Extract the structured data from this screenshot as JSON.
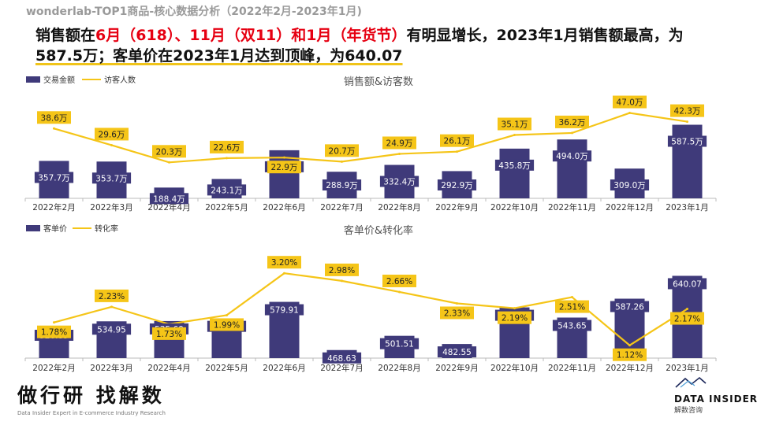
{
  "page": {
    "subtitle": "wonderlab-TOP1商品-核心数据分析（2022年2月-2023年1月)",
    "headline": {
      "p1": "销售额在",
      "p2": "6月（618）、11月（双11）和1月（年货节）",
      "p3": "有明显增长，2023年1月销售额最高，为",
      "p4": "587.5万；客单价在2023年1月达到顶峰，为640.07"
    }
  },
  "colors": {
    "bar": "#3f3a7a",
    "line": "#f5c518",
    "label_fill": "#f5c518",
    "axis": "#bbbbbb"
  },
  "chart_data": [
    {
      "type": "bar+line",
      "title": "销售额&访客数",
      "categories": [
        "2022年2月",
        "2022年3月",
        "2022年4月",
        "2022年5月",
        "2022年6月",
        "2022年7月",
        "2022年8月",
        "2022年9月",
        "2022年10月",
        "2022年11月",
        "2022年12月",
        "2023年1月"
      ],
      "series": [
        {
          "name": "交易金额",
          "type": "bar",
          "unit": "万",
          "values": [
            357.7,
            353.7,
            188.4,
            243.1,
            425.6,
            288.9,
            332.4,
            292.9,
            435.8,
            494.0,
            309.0,
            587.5
          ],
          "labels": [
            "357.7万",
            "353.7万",
            "188.4万",
            "243.1万",
            "425.6万",
            "288.9万",
            "332.4万",
            "292.9万",
            "435.8万",
            "494.0万",
            "309.0万",
            "587.5万"
          ]
        },
        {
          "name": "访客人数",
          "type": "line",
          "unit": "万",
          "values": [
            38.6,
            29.6,
            20.3,
            22.6,
            22.9,
            20.7,
            24.9,
            26.1,
            35.1,
            36.2,
            47.0,
            42.3
          ],
          "labels": [
            "38.6万",
            "29.6万",
            "20.3万",
            "22.6万",
            "22.9万",
            "20.7万",
            "24.9万",
            "26.1万",
            "35.1万",
            "36.2万",
            "47.0万",
            "42.3万"
          ]
        }
      ],
      "legend_position": "top-left",
      "grid": false
    },
    {
      "type": "bar+line",
      "title": "客单价&转化率",
      "categories": [
        "2022年2月",
        "2022年3月",
        "2022年4月",
        "2022年5月",
        "2022年6月",
        "2022年7月",
        "2022年8月",
        "2022年9月",
        "2022年10月",
        "2022年11月",
        "2022年12月",
        "2023年1月"
      ],
      "series": [
        {
          "name": "客单价",
          "type": "bar",
          "values": [
            520.89,
            534.95,
            535.6,
            541.56,
            579.91,
            468.63,
            501.51,
            482.55,
            567.14,
            543.65,
            587.26,
            640.07
          ],
          "labels": [
            "520.89",
            "534.95",
            "535.60",
            "541.56",
            "579.91",
            "468.63",
            "501.51",
            "482.55",
            "567.14",
            "543.65",
            "587.26",
            "640.07"
          ]
        },
        {
          "name": "转化率",
          "type": "line",
          "unit": "%",
          "values": [
            1.78,
            2.23,
            1.73,
            1.99,
            3.2,
            2.98,
            2.66,
            2.33,
            2.19,
            2.51,
            1.12,
            2.17
          ],
          "labels": [
            "1.78%",
            "2.23%",
            "1.73%",
            "1.99%",
            "3.20%",
            "2.98%",
            "2.66%",
            "2.33%",
            "2.19%",
            "2.51%",
            "1.12%",
            "2.17%"
          ]
        }
      ],
      "legend_position": "top-left",
      "grid": false
    }
  ],
  "branding": {
    "left_big": "做行研 找解数",
    "left_small": "Data Insider Expert in E-commerce Industry Research",
    "right_name": "DATA INSIDER",
    "right_sub": "解数咨询"
  }
}
